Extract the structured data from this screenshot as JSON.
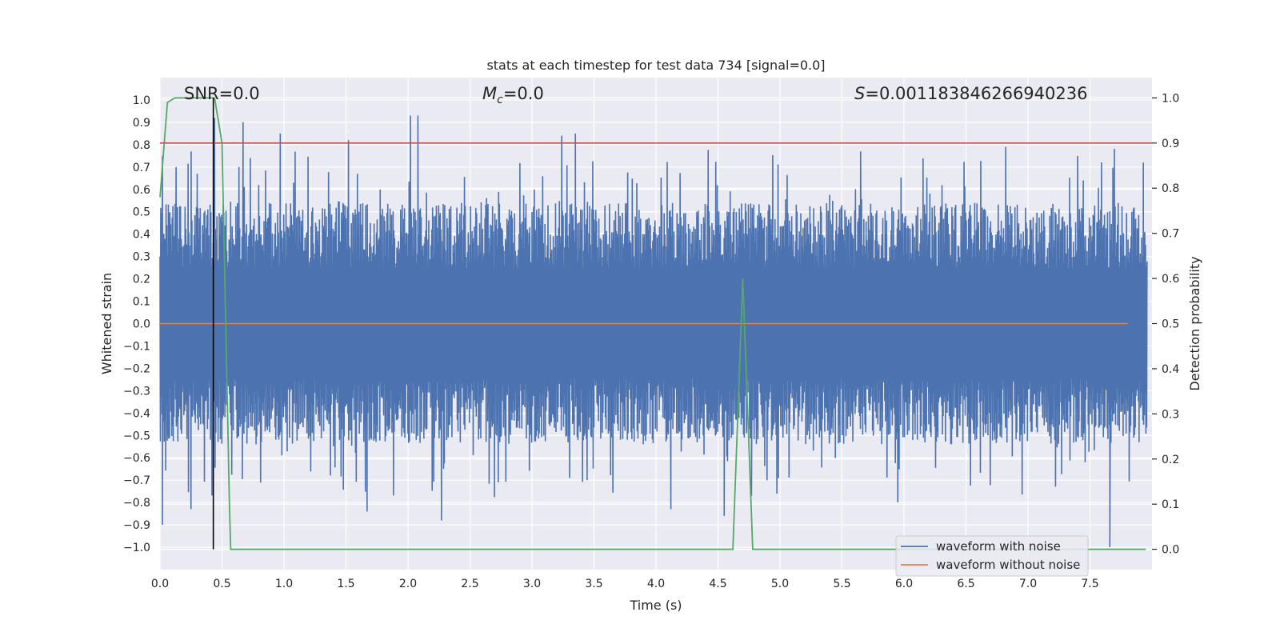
{
  "chart_data": {
    "type": "line",
    "title": "stats at each timestep for test data 734 [signal=0.0]",
    "xlabel": "Time (s)",
    "ylabel": "Whitened strain",
    "y2label": "Detection probability",
    "xlim": [
      0.0,
      8.0
    ],
    "ylim": [
      -1.1,
      1.1
    ],
    "y2lim": [
      -0.045,
      1.045
    ],
    "xticks": [
      "0.0",
      "0.5",
      "1.0",
      "1.5",
      "2.0",
      "2.5",
      "3.0",
      "3.5",
      "4.0",
      "4.5",
      "5.0",
      "5.5",
      "6.0",
      "6.5",
      "7.0",
      "7.5"
    ],
    "xtick_values": [
      0.0,
      0.5,
      1.0,
      1.5,
      2.0,
      2.5,
      3.0,
      3.5,
      4.0,
      4.5,
      5.0,
      5.5,
      6.0,
      6.5,
      7.0,
      7.5
    ],
    "yticks": [
      "1.0",
      "0.9",
      "0.8",
      "0.7",
      "0.6",
      "0.5",
      "0.4",
      "0.3",
      "0.2",
      "0.1",
      "0.0",
      "−0.1",
      "−0.2",
      "−0.3",
      "−0.4",
      "−0.5",
      "−0.6",
      "−0.7",
      "−0.8",
      "−0.9",
      "−1.0"
    ],
    "ytick_values": [
      1.0,
      0.9,
      0.8,
      0.7,
      0.6,
      0.5,
      0.4,
      0.3,
      0.2,
      0.1,
      0.0,
      -0.1,
      -0.2,
      -0.3,
      -0.4,
      -0.5,
      -0.6,
      -0.7,
      -0.8,
      -0.9,
      -1.0
    ],
    "y2ticks": [
      "1.0",
      "0.9",
      "0.8",
      "0.7",
      "0.6",
      "0.5",
      "0.4",
      "0.3",
      "0.2",
      "0.1",
      "0.0"
    ],
    "y2tick_values": [
      1.0,
      0.9,
      0.8,
      0.7,
      0.6,
      0.5,
      0.4,
      0.3,
      0.2,
      0.1,
      0.0
    ],
    "annotations": {
      "snr": "SNR=0.0",
      "mc_symbol": "M",
      "mc_sub": "c",
      "mc_value": "=0.0",
      "s_symbol": "S",
      "s_value": "=0.001183846266940236"
    },
    "threshold_prob": 0.9,
    "marker_time": 0.43,
    "series": [
      {
        "name": "waveform with noise",
        "color": "#4c72b0",
        "description_level": "noise",
        "envelope": {
          "typical_abs": 0.45,
          "max": 0.93,
          "min": -1.0
        },
        "peaks": [
          {
            "x": 0.02,
            "y": 0.75
          },
          {
            "x": 0.02,
            "y": -0.9
          },
          {
            "x": 0.13,
            "y": 0.7
          },
          {
            "x": 0.25,
            "y": -0.83
          },
          {
            "x": 0.44,
            "y": 0.92
          },
          {
            "x": 0.67,
            "y": 0.9
          },
          {
            "x": 0.97,
            "y": 0.85
          },
          {
            "x": 1.52,
            "y": 0.82
          },
          {
            "x": 1.67,
            "y": -0.84
          },
          {
            "x": 2.02,
            "y": 0.93
          },
          {
            "x": 2.08,
            "y": 0.93
          },
          {
            "x": 2.27,
            "y": -0.88
          },
          {
            "x": 3.24,
            "y": 0.84
          },
          {
            "x": 3.35,
            "y": 0.85
          },
          {
            "x": 4.12,
            "y": -0.83
          },
          {
            "x": 4.55,
            "y": -0.86
          },
          {
            "x": 4.77,
            "y": -0.77
          },
          {
            "x": 5.65,
            "y": 0.77
          },
          {
            "x": 5.95,
            "y": -0.8
          },
          {
            "x": 6.82,
            "y": 0.79
          },
          {
            "x": 7.4,
            "y": 0.75
          },
          {
            "x": 7.66,
            "y": -1.0
          },
          {
            "x": 7.93,
            "y": 0.72
          }
        ]
      },
      {
        "name": "waveform without noise",
        "color": "#dd8452",
        "x": [
          0.0,
          8.0
        ],
        "y": [
          0.0,
          0.0
        ]
      },
      {
        "name": "",
        "color": "#55a868",
        "axis": "right",
        "x": [
          0.0,
          0.06,
          0.12,
          0.44,
          0.5,
          0.56,
          0.57,
          4.55,
          4.62,
          4.7,
          4.78,
          4.8,
          7.95
        ],
        "y": [
          0.78,
          0.99,
          1.0,
          1.0,
          0.9,
          0.1,
          0.0,
          0.0,
          0.0,
          0.6,
          0.0,
          0.0,
          0.0
        ]
      }
    ],
    "legend": {
      "placement": "lower-right",
      "entries": [
        {
          "label": "waveform with noise",
          "color": "#4c72b0"
        },
        {
          "label": "waveform without noise",
          "color": "#dd8452"
        }
      ]
    },
    "grid": true,
    "colors": {
      "plot_bg": "#eaeaf2",
      "grid": "#ffffff",
      "threshold": "#c44e52",
      "marker": "#000000"
    }
  }
}
